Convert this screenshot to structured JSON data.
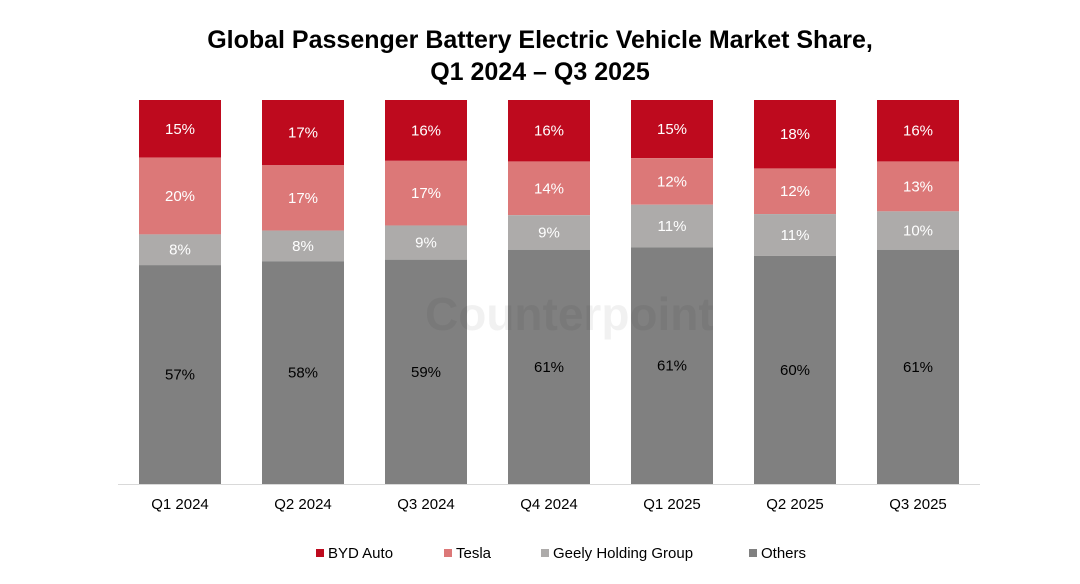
{
  "chart_data": {
    "type": "bar",
    "stacked": true,
    "title": "Global Passenger Battery Electric Vehicle Market Share,",
    "title_line2": "Q1 2024 – Q3 2025",
    "categories": [
      "Q1 2024",
      "Q2 2024",
      "Q3 2024",
      "Q4 2024",
      "Q1 2025",
      "Q2 2025",
      "Q3 2025"
    ],
    "series": [
      {
        "name": "BYD Auto",
        "color": "#BE0A1E",
        "label_color": "#FFFFFF",
        "values": [
          15,
          17,
          16,
          16,
          15,
          18,
          16
        ]
      },
      {
        "name": "Tesla",
        "color": "#DC7878",
        "label_color": "#FFFFFF",
        "values": [
          20,
          17,
          17,
          14,
          12,
          12,
          13
        ]
      },
      {
        "name": "Geely Holding Group",
        "color": "#ADABAA",
        "label_color": "#FFFFFF",
        "values": [
          8,
          8,
          9,
          9,
          11,
          11,
          10
        ]
      },
      {
        "name": "Others",
        "color": "#808080",
        "label_color": "#000000",
        "values": [
          57,
          58,
          59,
          61,
          61,
          60,
          61
        ]
      }
    ],
    "value_format": "percent",
    "ylim": [
      0,
      100
    ],
    "grid": false,
    "legend": "bottom",
    "watermark": "Counterpoint"
  }
}
